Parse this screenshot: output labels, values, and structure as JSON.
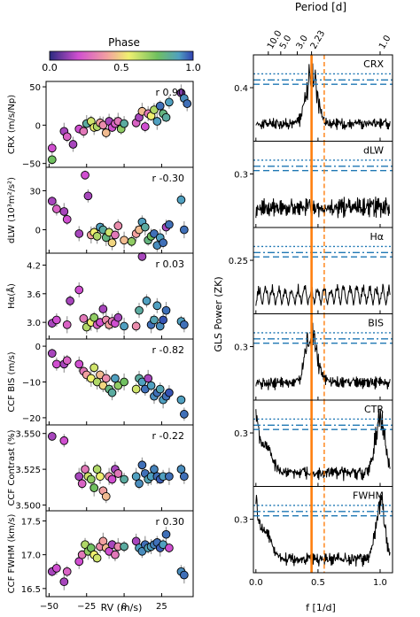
{
  "colorbar": {
    "title": "Phase",
    "ticks": [
      "0.0",
      "0.5",
      "1.0"
    ]
  },
  "left": {
    "xlabel": "RV (m/s)",
    "xticks": [
      "−50",
      "−25",
      "0",
      "25"
    ],
    "xtick_values": [
      -50,
      -25,
      0,
      25
    ],
    "xlim": [
      -52,
      46
    ],
    "panels": [
      {
        "id": "crx",
        "ylabel": "CRX (m/s/Np)",
        "r": "r 0.90",
        "ylim": [
          -55,
          57
        ],
        "yticks": [
          "50",
          "0",
          "−50"
        ],
        "ytick_values": [
          50,
          0,
          -50
        ]
      },
      {
        "id": "dlw",
        "ylabel": "dLW (10³m²/s²)",
        "r": "r -0.30",
        "ylim": [
          -18,
          48
        ],
        "yticks": [
          "30",
          "0"
        ],
        "ytick_values": [
          30,
          0
        ]
      },
      {
        "id": "ha",
        "ylabel": "Hα(Å)",
        "r": "r 0.03",
        "ylim": [
          2.65,
          4.45
        ],
        "yticks": [
          "4.2",
          "3.6",
          "3.0"
        ],
        "ytick_values": [
          4.2,
          3.6,
          3.0
        ]
      },
      {
        "id": "bis",
        "ylabel": "CCF BIS (m/s)",
        "r": "r -0.82",
        "ylim": [
          -22,
          2
        ],
        "yticks": [
          "0",
          "−10",
          "−20"
        ],
        "ytick_values": [
          0,
          -10,
          -20
        ]
      },
      {
        "id": "con",
        "ylabel": "CCF Contrast (%)",
        "r": "r -0.22",
        "ylim": [
          3.496,
          3.556
        ],
        "yticks": [
          "3.550",
          "3.525",
          "3.500"
        ],
        "ytick_values": [
          3.55,
          3.525,
          3.5
        ]
      },
      {
        "id": "fwhm",
        "ylabel": "CCF FWHM (km/s)",
        "r": "r 0.30",
        "ylim": [
          16.38,
          17.65
        ],
        "yticks": [
          "17.5",
          "17.0",
          "16.5"
        ],
        "ytick_values": [
          17.5,
          17.0,
          16.5
        ]
      }
    ]
  },
  "right": {
    "ylabel": "GLS Power (ZK)",
    "xlabel": "f [1/d]",
    "top_label": "Period [d]",
    "top_ticks": [
      "10.0",
      "5.0",
      "3.0",
      "2.23",
      "1.0"
    ],
    "top_tick_freqs": [
      0.1,
      0.2,
      0.333,
      0.448,
      1.0
    ],
    "xticks": [
      "0.0",
      "0.5",
      "1.0"
    ],
    "xtick_values": [
      0,
      0.5,
      1.0
    ],
    "xlim": [
      -0.02,
      1.1
    ],
    "solid_line_freq": 0.448,
    "dashed_line_freq": 0.55,
    "line_colors": {
      "solid": "#ff7f0e",
      "dashed": "#ff7f0e",
      "fap": "#1f77b4"
    },
    "panels": [
      {
        "name": "CRX",
        "ytick": "0.4"
      },
      {
        "name": "dLW",
        "ytick": "0.3"
      },
      {
        "name": "Hα",
        "ytick": "0.25"
      },
      {
        "name": "BIS",
        "ytick": "0.3"
      },
      {
        "name": "CTR",
        "ytick": "0.3"
      },
      {
        "name": "FWHM",
        "ytick": "0.3"
      }
    ]
  },
  "chart_data": [
    {
      "type": "scatter",
      "xlabel": "RV (m/s)",
      "ylabel": "CRX (m/s/Np)",
      "points": [
        [
          -48,
          -45,
          0.75
        ],
        [
          -48,
          -30,
          0.2
        ],
        [
          -40,
          -8,
          0.15
        ],
        [
          -38,
          -15,
          0.25
        ],
        [
          -34,
          -25,
          0.15
        ],
        [
          -30,
          -5,
          0.2
        ],
        [
          -27,
          -8,
          0.3
        ],
        [
          -25,
          2,
          0.85
        ],
        [
          -22,
          5,
          0.6
        ],
        [
          -20,
          -3,
          0.55
        ],
        [
          -18,
          -2,
          0.65
        ],
        [
          -16,
          3,
          0.4
        ],
        [
          -14,
          0,
          0.35
        ],
        [
          -12,
          -10,
          0.45
        ],
        [
          -10,
          5,
          0.15
        ],
        [
          -8,
          -3,
          0.2
        ],
        [
          -6,
          2,
          0.25
        ],
        [
          -4,
          5,
          0.3
        ],
        [
          -2,
          -5,
          0.7
        ],
        [
          0,
          2,
          0.85
        ],
        [
          8,
          3,
          0.25
        ],
        [
          10,
          10,
          0.15
        ],
        [
          12,
          18,
          0.45
        ],
        [
          14,
          -2,
          0.2
        ],
        [
          16,
          15,
          0.3
        ],
        [
          18,
          12,
          0.55
        ],
        [
          20,
          20,
          0.65
        ],
        [
          22,
          5,
          0.9
        ],
        [
          24,
          25,
          0.95
        ],
        [
          26,
          15,
          0.8
        ],
        [
          28,
          10,
          0.85
        ],
        [
          30,
          30,
          0.9
        ],
        [
          38,
          42,
          0.1
        ],
        [
          40,
          35,
          0.92
        ],
        [
          42,
          28,
          0.95
        ]
      ]
    },
    {
      "type": "scatter",
      "xlabel": "RV (m/s)",
      "ylabel": "dLW (10³m²/s²)",
      "points": [
        [
          -48,
          22,
          0.15
        ],
        [
          -45,
          16,
          0.25
        ],
        [
          -40,
          14,
          0.15
        ],
        [
          -38,
          8,
          0.2
        ],
        [
          -30,
          -3,
          0.15
        ],
        [
          -26,
          42,
          0.2
        ],
        [
          -24,
          26,
          0.15
        ],
        [
          -22,
          -4,
          0.4
        ],
        [
          -20,
          -2,
          0.55
        ],
        [
          -18,
          -5,
          0.65
        ],
        [
          -16,
          2,
          0.9
        ],
        [
          -14,
          0,
          0.85
        ],
        [
          -12,
          -6,
          0.8
        ],
        [
          -10,
          -2,
          0.6
        ],
        [
          -8,
          -10,
          0.5
        ],
        [
          -6,
          -4,
          0.3
        ],
        [
          -4,
          3,
          0.35
        ],
        [
          0,
          -8,
          0.45
        ],
        [
          5,
          -9,
          0.7
        ],
        [
          8,
          -3,
          0.4
        ],
        [
          10,
          0,
          0.45
        ],
        [
          12,
          6,
          0.9
        ],
        [
          14,
          2,
          0.85
        ],
        [
          16,
          -8,
          0.8
        ],
        [
          18,
          -5,
          0.75
        ],
        [
          20,
          -3,
          0.95
        ],
        [
          22,
          -12,
          0.92
        ],
        [
          24,
          -6,
          0.9
        ],
        [
          26,
          -10,
          0.95
        ],
        [
          28,
          2,
          0.15
        ],
        [
          30,
          4,
          0.95
        ],
        [
          38,
          23,
          0.9
        ],
        [
          40,
          0,
          0.95
        ]
      ]
    },
    {
      "type": "scatter",
      "xlabel": "RV (m/s)",
      "ylabel": "Hα(Å)",
      "points": [
        [
          -48,
          2.98,
          0.15
        ],
        [
          -45,
          3.05,
          0.2
        ],
        [
          -38,
          2.95,
          0.25
        ],
        [
          -36,
          3.45,
          0.15
        ],
        [
          -30,
          3.68,
          0.2
        ],
        [
          -27,
          3.08,
          0.3
        ],
        [
          -25,
          2.9,
          0.65
        ],
        [
          -22,
          3.0,
          0.55
        ],
        [
          -20,
          3.1,
          0.7
        ],
        [
          -18,
          2.95,
          0.25
        ],
        [
          -16,
          3.0,
          0.2
        ],
        [
          -14,
          3.28,
          0.15
        ],
        [
          -12,
          3.05,
          0.35
        ],
        [
          -10,
          2.95,
          0.4
        ],
        [
          -8,
          3.02,
          0.3
        ],
        [
          -6,
          2.98,
          0.2
        ],
        [
          -4,
          3.1,
          0.15
        ],
        [
          0,
          2.92,
          0.9
        ],
        [
          8,
          2.92,
          0.35
        ],
        [
          10,
          3.25,
          0.85
        ],
        [
          12,
          4.38,
          0.15
        ],
        [
          15,
          3.45,
          0.9
        ],
        [
          18,
          2.95,
          0.95
        ],
        [
          20,
          3.05,
          0.88
        ],
        [
          22,
          3.35,
          0.9
        ],
        [
          24,
          2.92,
          0.92
        ],
        [
          26,
          3.05,
          0.98
        ],
        [
          28,
          3.25,
          0.95
        ],
        [
          38,
          3.02,
          0.9
        ],
        [
          40,
          2.95,
          0.95
        ]
      ]
    },
    {
      "type": "scatter",
      "xlabel": "RV (m/s)",
      "ylabel": "CCF BIS (m/s)",
      "points": [
        [
          -48,
          -2,
          0.15
        ],
        [
          -45,
          -5,
          0.2
        ],
        [
          -40,
          -5,
          0.15
        ],
        [
          -38,
          -4,
          0.25
        ],
        [
          -30,
          -5,
          0.2
        ],
        [
          -27,
          -7,
          0.3
        ],
        [
          -25,
          -8,
          0.4
        ],
        [
          -22,
          -9,
          0.55
        ],
        [
          -20,
          -6,
          0.6
        ],
        [
          -18,
          -10,
          0.65
        ],
        [
          -16,
          -8,
          0.45
        ],
        [
          -14,
          -11,
          0.5
        ],
        [
          -12,
          -9,
          0.35
        ],
        [
          -10,
          -12,
          0.8
        ],
        [
          -8,
          -13,
          0.85
        ],
        [
          -6,
          -9,
          0.9
        ],
        [
          -4,
          -11,
          0.7
        ],
        [
          0,
          -10,
          0.75
        ],
        [
          8,
          -12,
          0.6
        ],
        [
          10,
          -9,
          0.85
        ],
        [
          12,
          -10,
          0.9
        ],
        [
          14,
          -12,
          0.95
        ],
        [
          16,
          -9,
          0.15
        ],
        [
          18,
          -11,
          0.9
        ],
        [
          20,
          -14,
          0.92
        ],
        [
          22,
          -13,
          0.95
        ],
        [
          24,
          -12,
          0.88
        ],
        [
          26,
          -15,
          0.9
        ],
        [
          28,
          -14,
          0.95
        ],
        [
          30,
          -13,
          0.98
        ],
        [
          38,
          -15,
          0.9
        ],
        [
          40,
          -19,
          0.95
        ]
      ]
    },
    {
      "type": "scatter",
      "xlabel": "RV (m/s)",
      "ylabel": "CCF Contrast (%)",
      "points": [
        [
          -48,
          3.548,
          0.15
        ],
        [
          -40,
          3.545,
          0.2
        ],
        [
          -30,
          3.52,
          0.15
        ],
        [
          -28,
          3.515,
          0.25
        ],
        [
          -26,
          3.525,
          0.3
        ],
        [
          -24,
          3.52,
          0.6
        ],
        [
          -22,
          3.518,
          0.7
        ],
        [
          -20,
          3.512,
          0.75
        ],
        [
          -18,
          3.525,
          0.65
        ],
        [
          -16,
          3.52,
          0.55
        ],
        [
          -14,
          3.51,
          0.4
        ],
        [
          -12,
          3.506,
          0.45
        ],
        [
          -10,
          3.52,
          0.35
        ],
        [
          -8,
          3.518,
          0.2
        ],
        [
          -6,
          3.525,
          0.15
        ],
        [
          -4,
          3.522,
          0.3
        ],
        [
          0,
          3.518,
          0.85
        ],
        [
          8,
          3.52,
          0.9
        ],
        [
          10,
          3.515,
          0.92
        ],
        [
          12,
          3.528,
          0.95
        ],
        [
          14,
          3.522,
          0.95
        ],
        [
          16,
          3.518,
          0.88
        ],
        [
          18,
          3.52,
          0.9
        ],
        [
          20,
          3.525,
          0.93
        ],
        [
          22,
          3.52,
          0.95
        ],
        [
          24,
          3.518,
          0.97
        ],
        [
          26,
          3.52,
          0.9
        ],
        [
          30,
          3.52,
          0.95
        ],
        [
          38,
          3.525,
          0.92
        ],
        [
          40,
          3.52,
          0.95
        ]
      ]
    },
    {
      "type": "scatter",
      "xlabel": "RV (m/s)",
      "ylabel": "CCF FWHM (km/s)",
      "points": [
        [
          -48,
          16.75,
          0.15
        ],
        [
          -45,
          16.8,
          0.2
        ],
        [
          -40,
          16.6,
          0.15
        ],
        [
          -38,
          16.75,
          0.25
        ],
        [
          -30,
          16.9,
          0.2
        ],
        [
          -28,
          17.0,
          0.3
        ],
        [
          -26,
          17.15,
          0.65
        ],
        [
          -24,
          17.05,
          0.7
        ],
        [
          -22,
          17.1,
          0.75
        ],
        [
          -20,
          17.0,
          0.55
        ],
        [
          -18,
          16.95,
          0.6
        ],
        [
          -16,
          17.12,
          0.35
        ],
        [
          -14,
          17.2,
          0.4
        ],
        [
          -12,
          17.1,
          0.45
        ],
        [
          -10,
          17.05,
          0.2
        ],
        [
          -8,
          17.15,
          0.15
        ],
        [
          -6,
          17.0,
          0.3
        ],
        [
          -4,
          17.12,
          0.35
        ],
        [
          0,
          17.12,
          0.85
        ],
        [
          8,
          17.2,
          0.15
        ],
        [
          10,
          17.1,
          0.9
        ],
        [
          12,
          17.05,
          0.92
        ],
        [
          14,
          17.15,
          0.95
        ],
        [
          16,
          17.1,
          0.88
        ],
        [
          18,
          17.12,
          0.9
        ],
        [
          20,
          17.15,
          0.93
        ],
        [
          22,
          17.18,
          0.95
        ],
        [
          24,
          17.1,
          0.97
        ],
        [
          26,
          17.15,
          0.9
        ],
        [
          28,
          17.3,
          0.95
        ],
        [
          30,
          17.1,
          0.2
        ],
        [
          38,
          16.75,
          0.92
        ],
        [
          40,
          16.7,
          0.95
        ]
      ]
    },
    {
      "type": "line",
      "xlabel": "f [1/d]",
      "ylabel": "GLS Power (ZK)",
      "series": [
        {
          "name": "CRX",
          "peak_freq": 0.448,
          "shape": "single-peak"
        },
        {
          "name": "dLW",
          "shape": "noise"
        },
        {
          "name": "Hα",
          "shape": "comb"
        },
        {
          "name": "BIS",
          "peak_freq": 0.448,
          "shape": "single-peak"
        },
        {
          "name": "CTR",
          "shape": "edge-peaks"
        },
        {
          "name": "FWHM",
          "shape": "edge-peaks"
        }
      ]
    }
  ]
}
